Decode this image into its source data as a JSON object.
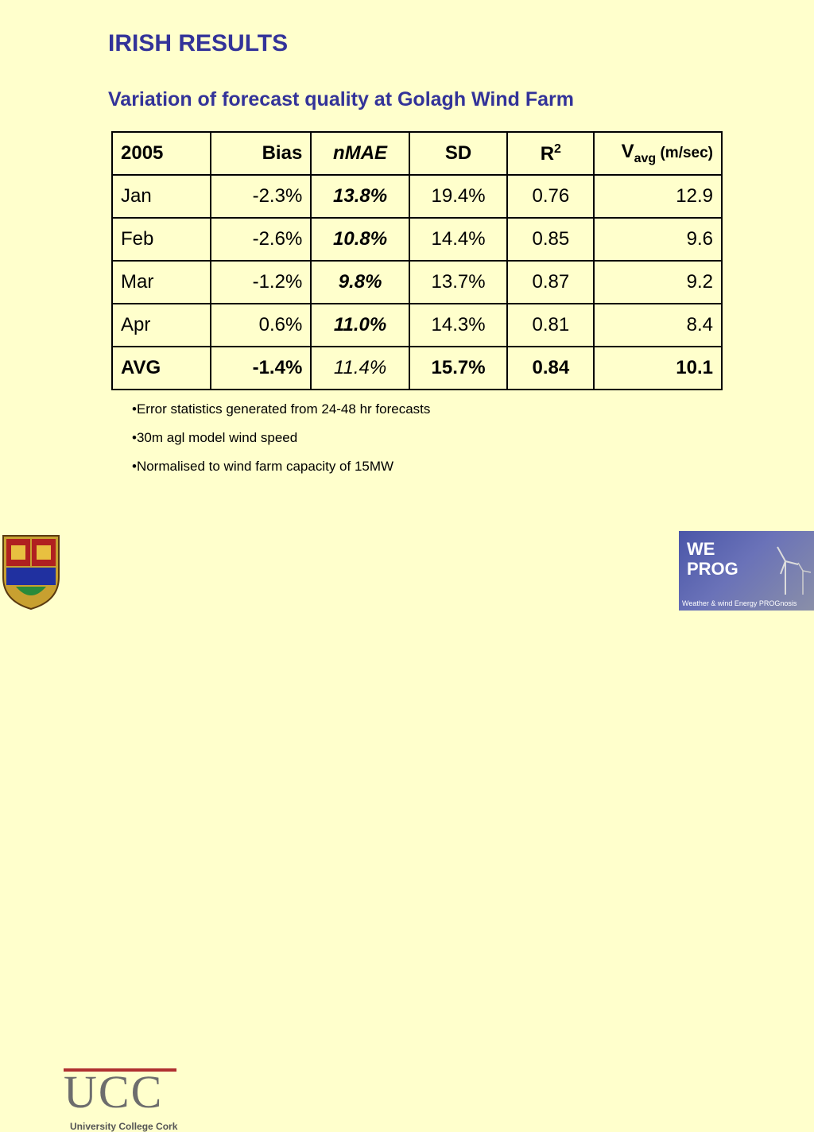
{
  "title": "IRISH RESULTS",
  "subtitle": "Variation of forecast quality at Golagh Wind Farm",
  "table": {
    "headers": {
      "year": "2005",
      "bias": "Bias",
      "nmae": "nMAE",
      "sd": "SD",
      "r_base": "R",
      "r_sup": "2",
      "v_base": "V",
      "v_sub": "avg",
      "v_unit": " (m/sec)"
    },
    "rows": [
      {
        "month": "Jan",
        "bias": "-2.3%",
        "nmae": "13.8%",
        "sd": "19.4%",
        "r2": "0.76",
        "vavg": "12.9"
      },
      {
        "month": "Feb",
        "bias": "-2.6%",
        "nmae": "10.8%",
        "sd": "14.4%",
        "r2": "0.85",
        "vavg": "9.6"
      },
      {
        "month": "Mar",
        "bias": "-1.2%",
        "nmae": "9.8%",
        "sd": "13.7%",
        "r2": "0.87",
        "vavg": "9.2"
      },
      {
        "month": "Apr",
        "bias": "0.6%",
        "nmae": "11.0%",
        "sd": "14.3%",
        "r2": "0.81",
        "vavg": "8.4"
      }
    ],
    "avg": {
      "month": "AVG",
      "bias": "-1.4%",
      "nmae": "11.4%",
      "sd": "15.7%",
      "r2": "0.84",
      "vavg": "10.1"
    }
  },
  "notes": [
    "•Error statistics generated from 24-48 hr forecasts",
    "•30m agl model wind speed",
    "•Normalised to wind farm capacity of 15MW"
  ],
  "logos": {
    "ucc_mark": "UCC",
    "ucc_caption": "University College Cork",
    "weprog_line1": "WE",
    "weprog_line2": "PROG",
    "weprog_tagline": "Weather & wind Energy PROGnosis"
  },
  "colors": {
    "background": "#ffffcc",
    "heading": "#333399"
  }
}
